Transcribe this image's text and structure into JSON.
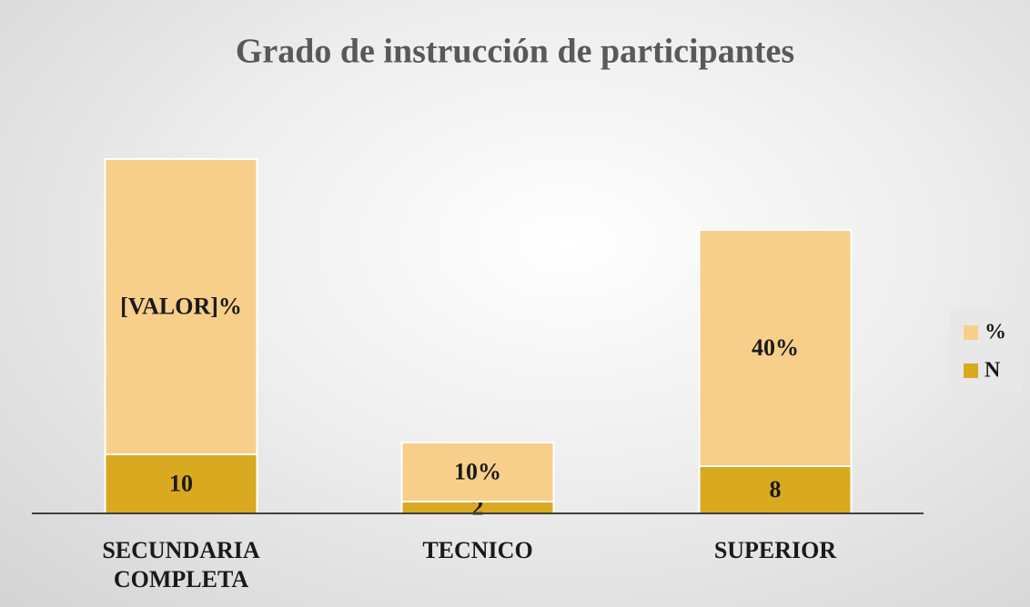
{
  "chart_data": {
    "type": "stacked_bar",
    "title": "Grado de instrucción de participantes",
    "categories": [
      "SECUNDARIA COMPLETA",
      "TECNICO",
      "SUPERIOR"
    ],
    "series": [
      {
        "name": "N",
        "color": "#d9a920",
        "values": [
          10,
          2,
          8
        ]
      },
      {
        "name": "%",
        "color": "#f8cf8a",
        "values": [
          50,
          10,
          40
        ],
        "value_labels": [
          "[VALOR]%",
          "10%",
          "40%"
        ]
      }
    ],
    "ylim": [
      0,
      60
    ],
    "legend": "right"
  }
}
